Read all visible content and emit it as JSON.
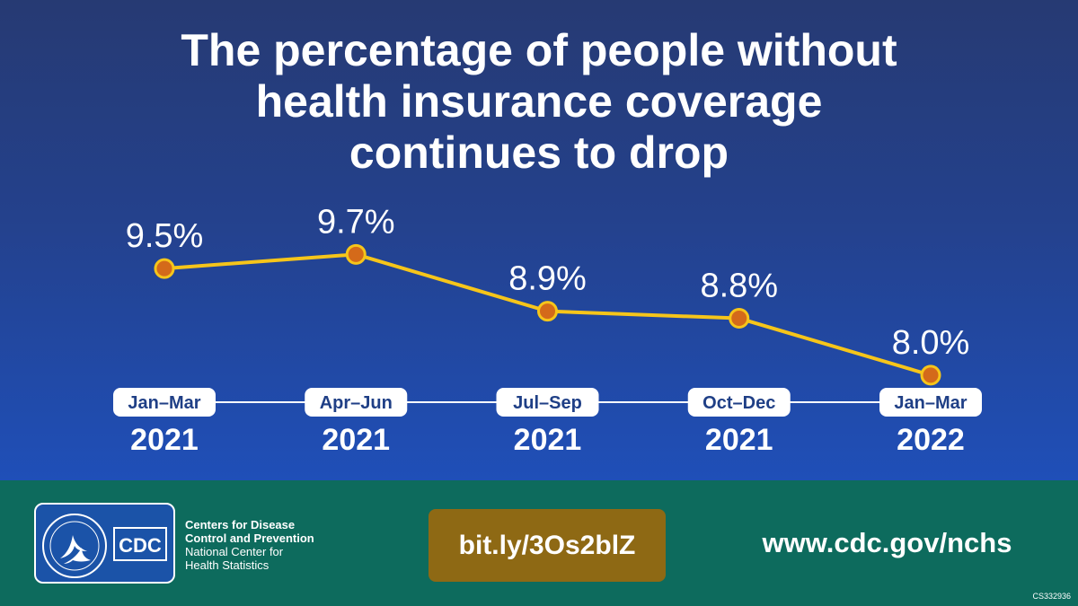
{
  "title_lines": [
    "The percentage of people without",
    "health insurance coverage",
    "continues to drop"
  ],
  "chart_data": {
    "type": "line",
    "title": "The percentage of people without health insurance coverage continues to drop",
    "categories": [
      {
        "period": "Jan–Mar",
        "year": "2021"
      },
      {
        "period": "Apr–Jun",
        "year": "2021"
      },
      {
        "period": "Jul–Sep",
        "year": "2021"
      },
      {
        "period": "Oct–Dec",
        "year": "2021"
      },
      {
        "period": "Jan–Mar",
        "year": "2022"
      }
    ],
    "values": [
      9.5,
      9.7,
      8.9,
      8.8,
      8.0
    ],
    "value_labels": [
      "9.5%",
      "9.7%",
      "8.9%",
      "8.8%",
      "8.0%"
    ],
    "ylim": [
      7.0,
      10.5
    ],
    "grid": false,
    "colors": {
      "line": "#f6c51a",
      "marker_fill": "#d46a1a",
      "axis": "#ffffff"
    }
  },
  "footer": {
    "org_line1": "Centers for Disease",
    "org_line2": "Control and Prevention",
    "org_line3": "National Center for",
    "org_line4": "Health Statistics",
    "logo_text": "CDC",
    "short_link": "bit.ly/3Os2blZ",
    "website": "www.cdc.gov/nchs",
    "code": "CS332936"
  },
  "colors": {
    "background_top": "#263a73",
    "background_bottom": "#1f4fb8",
    "footer": "#0d6b5d",
    "link_button": "#8e6914"
  }
}
